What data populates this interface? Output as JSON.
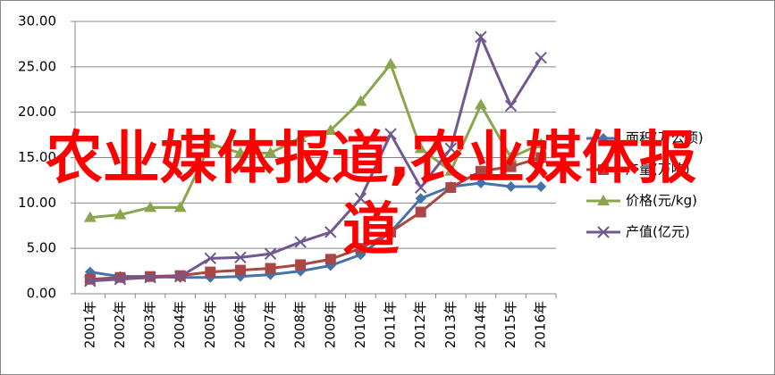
{
  "chart_data": {
    "type": "line",
    "categories": [
      "2001年",
      "2002年",
      "2003年",
      "2004年",
      "2005年",
      "2006年",
      "2007年",
      "2008年",
      "2009年",
      "2010年",
      "2011年",
      "2012年",
      "2013年",
      "2014年",
      "2015年",
      "2016年"
    ],
    "series": [
      {
        "name": "面积(万公顷)",
        "color": "#4572a7",
        "marker": "diamond",
        "values": [
          2.4,
          1.9,
          1.9,
          1.8,
          1.8,
          1.9,
          2.1,
          2.5,
          3.1,
          4.3,
          6.8,
          10.5,
          11.8,
          12.2,
          11.8,
          11.8
        ]
      },
      {
        "name": "产量(万吨)",
        "color": "#aa4643",
        "marker": "square",
        "values": [
          1.6,
          1.8,
          1.9,
          2.0,
          2.4,
          2.6,
          2.8,
          3.2,
          3.8,
          5.0,
          6.8,
          9.0,
          11.7,
          13.5,
          14.0,
          15.0
        ]
      },
      {
        "name": "价格(元/kg)",
        "color": "#89a54e",
        "marker": "triangle",
        "values": [
          8.4,
          8.7,
          9.5,
          9.5,
          16.5,
          15.5,
          15.5,
          17.2,
          18.0,
          21.2,
          25.3,
          16.0,
          13.5,
          20.8,
          15.0,
          16.5
        ]
      },
      {
        "name": "产值(亿元)",
        "color": "#71588f",
        "marker": "x",
        "values": [
          1.4,
          1.6,
          1.8,
          1.9,
          3.9,
          4.0,
          4.4,
          5.7,
          6.8,
          10.5,
          17.6,
          11.7,
          16.0,
          28.3,
          20.7,
          26.0
        ]
      }
    ],
    "ylim": [
      0,
      30
    ],
    "yticks": [
      {
        "value": 0,
        "label": "0.00"
      },
      {
        "value": 5,
        "label": "5.00"
      },
      {
        "value": 10,
        "label": "10.00"
      },
      {
        "value": 15,
        "label": "15.00"
      },
      {
        "value": 20,
        "label": "20.00"
      },
      {
        "value": 25,
        "label": "25.00"
      },
      {
        "value": 30,
        "label": "30.00"
      }
    ],
    "grid": true,
    "legend": "right"
  },
  "watermark": "农业媒体报道,农业媒体报道"
}
